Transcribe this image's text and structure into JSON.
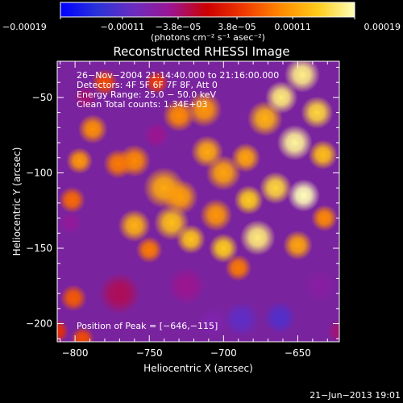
{
  "chart_data": {
    "type": "heatmap",
    "title": "Reconstructed RHESSI Image",
    "xlabel": "Heliocentric X (arcsec)",
    "ylabel": "Heliocentric Y (arcsec)",
    "xlim": [
      -812,
      -622
    ],
    "ylim": [
      -212,
      -26
    ],
    "x_ticks": [
      -800,
      -750,
      -700,
      -650
    ],
    "x_tick_labels": [
      "−800",
      "−750",
      "−700",
      "−650"
    ],
    "y_ticks": [
      -50,
      -100,
      -150,
      -200
    ],
    "y_tick_labels": [
      "−50",
      "−100",
      "−150",
      "−200"
    ],
    "colorbar": {
      "range": [
        -0.00019,
        0.00019
      ],
      "ticks": [
        -0.00019,
        -0.00011,
        -3.8e-05,
        3.8e-05,
        0.00011,
        0.00019
      ],
      "tick_labels": [
        "−0.00019",
        "−0.00011",
        "−3.8e−05",
        "3.8e−05",
        "0.00011",
        "0.00019"
      ],
      "unit_label": "(photons cm⁻² s⁻¹ asec⁻²)",
      "colors": [
        "#0000ff",
        "#2a33d8",
        "#6c2cc0",
        "#9b1590",
        "#cc0000",
        "#f03a00",
        "#ff8a00",
        "#ffcc1a",
        "#ffffb8"
      ]
    },
    "annotations": [
      "26−Nov−2004 21:14:40.000 to 21:16:00.000",
      "Detectors: 4F 5F 6F 7F 8F, Att 0",
      "Energy Range: 25.0 − 50.0 keV",
      "Clean    Total counts: 1.34E+03"
    ],
    "peak_label": "Position of Peak = [−646,−115]",
    "peak_position": [
      -646,
      -115
    ],
    "image_blobs": [
      {
        "x": -740,
        "y": -110,
        "v": 0.62,
        "s": 14
      },
      {
        "x": -729,
        "y": -116,
        "v": 0.58,
        "s": 12
      },
      {
        "x": -760,
        "y": -92,
        "v": 0.5,
        "s": 11
      },
      {
        "x": -771,
        "y": -94,
        "v": 0.45,
        "s": 10
      },
      {
        "x": -788,
        "y": -71,
        "v": 0.52,
        "s": 10
      },
      {
        "x": -797,
        "y": -92,
        "v": 0.55,
        "s": 9
      },
      {
        "x": -802,
        "y": -118,
        "v": 0.4,
        "s": 9
      },
      {
        "x": -760,
        "y": -135,
        "v": 0.65,
        "s": 11
      },
      {
        "x": -735,
        "y": -133,
        "v": 0.7,
        "s": 12
      },
      {
        "x": -750,
        "y": -151,
        "v": 0.45,
        "s": 9
      },
      {
        "x": -722,
        "y": -144,
        "v": 0.72,
        "s": 10
      },
      {
        "x": -705,
        "y": -128,
        "v": 0.55,
        "s": 11
      },
      {
        "x": -700,
        "y": -100,
        "v": 0.6,
        "s": 12
      },
      {
        "x": -711,
        "y": -86,
        "v": 0.62,
        "s": 11
      },
      {
        "x": -713,
        "y": -58,
        "v": 0.55,
        "s": 12
      },
      {
        "x": -730,
        "y": -62,
        "v": 0.5,
        "s": 11
      },
      {
        "x": -672,
        "y": -64,
        "v": 0.65,
        "s": 12
      },
      {
        "x": -661,
        "y": -50,
        "v": 0.9,
        "s": 11
      },
      {
        "x": -647,
        "y": -35,
        "v": 0.92,
        "s": 12
      },
      {
        "x": -637,
        "y": -60,
        "v": 0.8,
        "s": 11
      },
      {
        "x": -652,
        "y": -80,
        "v": 0.95,
        "s": 12
      },
      {
        "x": -633,
        "y": -88,
        "v": 0.7,
        "s": 10
      },
      {
        "x": -685,
        "y": -90,
        "v": 0.6,
        "s": 10
      },
      {
        "x": -646,
        "y": -115,
        "v": 1.0,
        "s": 11
      },
      {
        "x": -665,
        "y": -110,
        "v": 0.8,
        "s": 11
      },
      {
        "x": -683,
        "y": -118,
        "v": 0.75,
        "s": 10
      },
      {
        "x": -677,
        "y": -143,
        "v": 0.9,
        "s": 12
      },
      {
        "x": -700,
        "y": -150,
        "v": 0.75,
        "s": 10
      },
      {
        "x": -650,
        "y": -148,
        "v": 0.6,
        "s": 10
      },
      {
        "x": -632,
        "y": -130,
        "v": 0.5,
        "s": 9
      },
      {
        "x": -690,
        "y": -163,
        "v": 0.45,
        "s": 9
      },
      {
        "x": -801,
        "y": -183,
        "v": 0.35,
        "s": 9
      },
      {
        "x": -780,
        "y": -40,
        "v": 0.3,
        "s": 9
      },
      {
        "x": -745,
        "y": -40,
        "v": 0.25,
        "s": 8
      },
      {
        "x": -795,
        "y": -210,
        "v": 0.3,
        "s": 8
      },
      {
        "x": -770,
        "y": -180,
        "v": -0.15,
        "s": 14
      },
      {
        "x": -725,
        "y": -175,
        "v": -0.25,
        "s": 13
      },
      {
        "x": -688,
        "y": -197,
        "v": -0.55,
        "s": 12
      },
      {
        "x": -662,
        "y": -196,
        "v": -0.6,
        "s": 11
      },
      {
        "x": -707,
        "y": -199,
        "v": -0.4,
        "s": 10
      },
      {
        "x": -635,
        "y": -175,
        "v": -0.35,
        "s": 11
      },
      {
        "x": -745,
        "y": -75,
        "v": -0.25,
        "s": 9
      },
      {
        "x": -803,
        "y": -133,
        "v": -0.3,
        "s": 8
      },
      {
        "x": -793,
        "y": -50,
        "v": -0.2,
        "s": 8
      },
      {
        "x": -812,
        "y": -205,
        "v": 0.2,
        "s": 8
      },
      {
        "x": -622,
        "y": -205,
        "v": -0.2,
        "s": 8
      }
    ]
  },
  "footer": {
    "timestamp": "21−Jun−2013 19:01"
  }
}
